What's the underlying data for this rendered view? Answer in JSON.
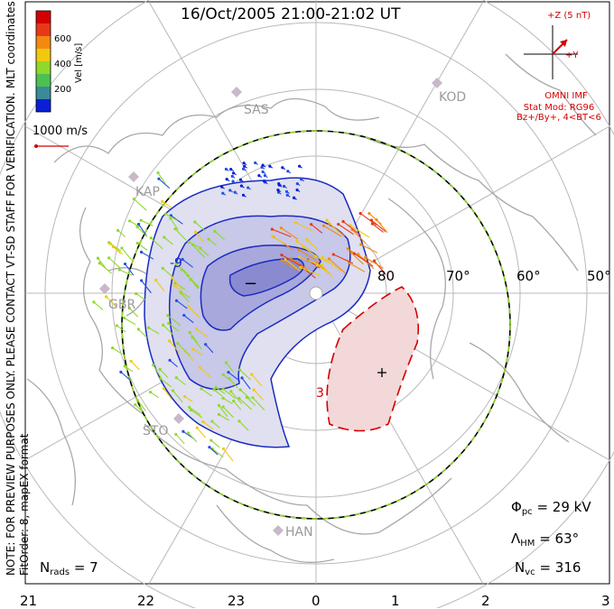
{
  "title": "16/Oct/2005 21:00-21:02 UT",
  "imf": {
    "z_label": "+Z (5 nT)",
    "y_label": "+Y",
    "source": "OMNI IMF",
    "model_line1": "Stat Mod: RG96",
    "model_line2": "Bz+/By+, 4<BT<6"
  },
  "colorbar": {
    "label": "Vel [m/s]",
    "ticks": [
      "600",
      "400",
      "200"
    ],
    "colors": [
      "#0a1fd6",
      "#2050e0",
      "#3a8a9a",
      "#4cc050",
      "#8fd82c",
      "#f2c80e",
      "#f28a10",
      "#e83818",
      "#d40000"
    ]
  },
  "vector_scale_label": "1000 m/s",
  "side_text": {
    "coordinates": "MLT coordinates",
    "note": "NOTE: FOR PREVIEW PURPOSES ONLY. PLEASE CONTACT VT-SD STAFF FOR VERIFICATION.",
    "fit": "FitOrder: 8, mapEX format"
  },
  "stations": [
    "SAS",
    "KOD",
    "KAP",
    "GBR",
    "STO",
    "HAN"
  ],
  "latitude_labels": [
    "80",
    "70°",
    "60°",
    "50°"
  ],
  "mlt_labels": [
    "21",
    "22",
    "23",
    "0",
    "1",
    "2",
    "3"
  ],
  "contour_labels": {
    "negative": "-9",
    "positive": "3"
  },
  "extremum_markers": {
    "min": "−",
    "max": "+"
  },
  "stats": {
    "phi_pc_symbol": "Φ",
    "phi_pc_sub": "pc",
    "phi_pc_value": "= 29 kV",
    "lambda_symbol": "Λ",
    "lambda_sub": "HM",
    "lambda_value": "= 63°",
    "nvc_symbol": "N",
    "nvc_sub": "vc",
    "nvc_value": "= 316",
    "nrads_symbol": "N",
    "nrads_sub": "rads",
    "nrads_value": "= 7"
  }
}
